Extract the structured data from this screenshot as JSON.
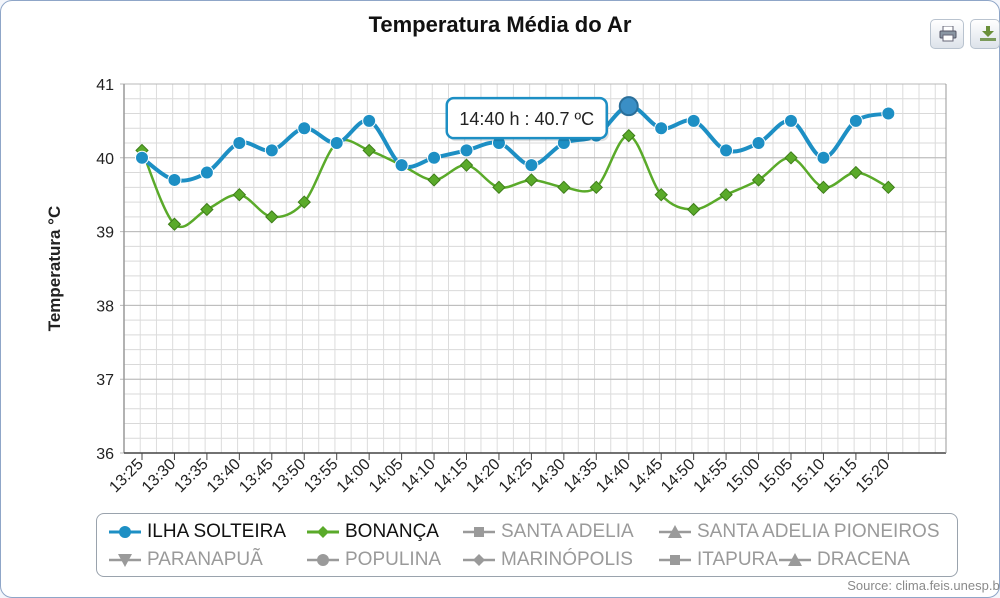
{
  "toolbar": {
    "print_icon": "printer-icon",
    "download_icon": "download-icon"
  },
  "chart_data": {
    "type": "line",
    "title": "Temperatura Média do Ar",
    "ylabel": "Temperatura °C",
    "xlabel": "",
    "ylim": [
      36,
      41
    ],
    "yticks": [
      "36",
      "37",
      "38",
      "39",
      "40",
      "41"
    ],
    "grid": true,
    "categories": [
      "13:25",
      "13:30",
      "13:35",
      "13:40",
      "13:45",
      "13:50",
      "13:55",
      "14:00",
      "14:05",
      "14:10",
      "14:15",
      "14:20",
      "14:25",
      "14:30",
      "14:35",
      "14:40",
      "14:45",
      "14:50",
      "14:55",
      "15:00",
      "15:05",
      "15:10",
      "15:15",
      "15:20"
    ],
    "series": [
      {
        "name": "ILHA SOLTEIRA",
        "color": "#1d8fc4",
        "marker": "circle",
        "values": [
          40.0,
          39.7,
          39.8,
          40.2,
          40.1,
          40.4,
          40.2,
          40.5,
          39.9,
          40.0,
          40.1,
          40.2,
          39.9,
          40.2,
          40.3,
          40.7,
          40.4,
          40.5,
          40.1,
          40.2,
          40.5,
          40.0,
          40.5,
          40.6
        ]
      },
      {
        "name": "BONANÇA",
        "color": "#5aaa2a",
        "marker": "diamond",
        "values": [
          40.1,
          39.1,
          39.3,
          39.5,
          39.2,
          39.4,
          40.2,
          40.1,
          39.9,
          39.7,
          39.9,
          39.6,
          39.7,
          39.6,
          39.6,
          40.3,
          39.5,
          39.3,
          39.5,
          39.7,
          40.0,
          39.6,
          39.8,
          39.6
        ]
      }
    ],
    "tooltip": {
      "text": "14:40 h : 40.7 ºC",
      "series": "ILHA SOLTEIRA",
      "category": "14:40"
    },
    "legend": [
      {
        "name": "ILHA SOLTEIRA",
        "marker": "circle",
        "active": true,
        "color": "#1d8fc4"
      },
      {
        "name": "BONANÇA",
        "marker": "diamond",
        "active": true,
        "color": "#5aaa2a"
      },
      {
        "name": "SANTA ADELIA",
        "marker": "square",
        "active": false,
        "color": "#9a9a9a"
      },
      {
        "name": "SANTA ADELIA PIONEIROS",
        "marker": "triangle",
        "active": false,
        "color": "#9a9a9a"
      },
      {
        "name": "PARANAPUÃ",
        "marker": "triangle-down",
        "active": false,
        "color": "#9a9a9a"
      },
      {
        "name": "POPULINA",
        "marker": "circle",
        "active": false,
        "color": "#9a9a9a"
      },
      {
        "name": "MARINÓPOLIS",
        "marker": "diamond",
        "active": false,
        "color": "#9a9a9a"
      },
      {
        "name": "ITAPURA",
        "marker": "square",
        "active": false,
        "color": "#9a9a9a"
      },
      {
        "name": "DRACENA",
        "marker": "triangle",
        "active": false,
        "color": "#9a9a9a"
      }
    ],
    "legend_position": "bottom",
    "credits": "Source: clima.feis.unesp.br"
  }
}
